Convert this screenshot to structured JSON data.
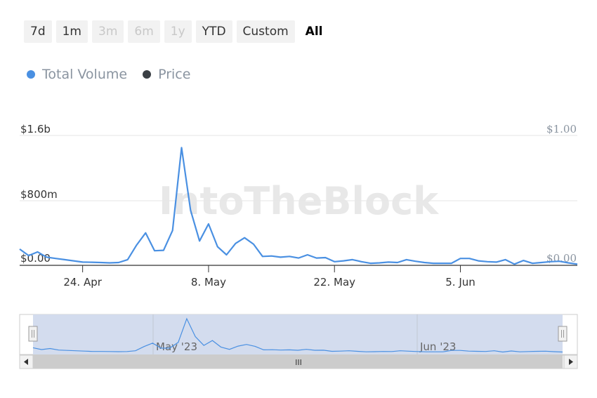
{
  "range_selector": {
    "buttons": [
      {
        "label": "7d",
        "state": "normal"
      },
      {
        "label": "1m",
        "state": "normal"
      },
      {
        "label": "3m",
        "state": "disabled"
      },
      {
        "label": "6m",
        "state": "disabled"
      },
      {
        "label": "1y",
        "state": "disabled"
      },
      {
        "label": "YTD",
        "state": "normal"
      },
      {
        "label": "Custom",
        "state": "normal"
      },
      {
        "label": "All",
        "state": "active"
      }
    ]
  },
  "legend": {
    "items": [
      {
        "label": "Total Volume",
        "color": "#4a90e2"
      },
      {
        "label": "Price",
        "color": "#3a3f44"
      }
    ]
  },
  "watermark": "IntoTheBlock",
  "navigator": {
    "labels": [
      "May '23",
      "Jun '23"
    ],
    "scroll_handle": "III"
  },
  "chart_data": {
    "type": "line",
    "title": "",
    "xlabel": "",
    "ylabel": "",
    "x_tick_labels": [
      "24. Apr",
      "8. May",
      "22. May",
      "5. Jun"
    ],
    "y_left_ticks": [
      "$0.00",
      "$800m",
      "$1.6b"
    ],
    "y_right_ticks": [
      "$0.00",
      "$1.00"
    ],
    "ylim_left": [
      0,
      1600000000
    ],
    "ylim_right": [
      0,
      1
    ],
    "grid": true,
    "legend_position": "top-left",
    "series": [
      {
        "name": "Total Volume",
        "color": "#4a90e2",
        "x": [
          "2023-04-17",
          "2023-04-18",
          "2023-04-19",
          "2023-04-20",
          "2023-04-21",
          "2023-04-22",
          "2023-04-23",
          "2023-04-24",
          "2023-04-25",
          "2023-04-26",
          "2023-04-27",
          "2023-04-28",
          "2023-04-29",
          "2023-04-30",
          "2023-05-01",
          "2023-05-02",
          "2023-05-03",
          "2023-05-04",
          "2023-05-05",
          "2023-05-06",
          "2023-05-07",
          "2023-05-08",
          "2023-05-09",
          "2023-05-10",
          "2023-05-11",
          "2023-05-12",
          "2023-05-13",
          "2023-05-14",
          "2023-05-15",
          "2023-05-16",
          "2023-05-17",
          "2023-05-18",
          "2023-05-19",
          "2023-05-20",
          "2023-05-21",
          "2023-05-22",
          "2023-05-23",
          "2023-05-24",
          "2023-05-25",
          "2023-05-26",
          "2023-05-27",
          "2023-05-28",
          "2023-05-29",
          "2023-05-30",
          "2023-05-31",
          "2023-06-01",
          "2023-06-02",
          "2023-06-03",
          "2023-06-04",
          "2023-06-05",
          "2023-06-06",
          "2023-06-07",
          "2023-06-08",
          "2023-06-09",
          "2023-06-10",
          "2023-06-11",
          "2023-06-12",
          "2023-06-13",
          "2023-06-14",
          "2023-06-15",
          "2023-06-16",
          "2023-06-17",
          "2023-06-18"
        ],
        "values": [
          200000000,
          120000000,
          165000000,
          100000000,
          85000000,
          70000000,
          55000000,
          40000000,
          38000000,
          35000000,
          30000000,
          35000000,
          70000000,
          250000000,
          400000000,
          180000000,
          185000000,
          430000000,
          1450000000,
          680000000,
          300000000,
          510000000,
          230000000,
          130000000,
          270000000,
          340000000,
          260000000,
          110000000,
          115000000,
          100000000,
          110000000,
          90000000,
          130000000,
          90000000,
          95000000,
          45000000,
          55000000,
          70000000,
          45000000,
          25000000,
          30000000,
          40000000,
          35000000,
          70000000,
          50000000,
          35000000,
          25000000,
          25000000,
          25000000,
          85000000,
          85000000,
          55000000,
          45000000,
          40000000,
          70000000,
          15000000,
          60000000,
          25000000,
          35000000,
          45000000,
          50000000,
          30000000,
          15000000
        ]
      },
      {
        "name": "Price",
        "color": "#3a3f44",
        "values": []
      }
    ]
  }
}
